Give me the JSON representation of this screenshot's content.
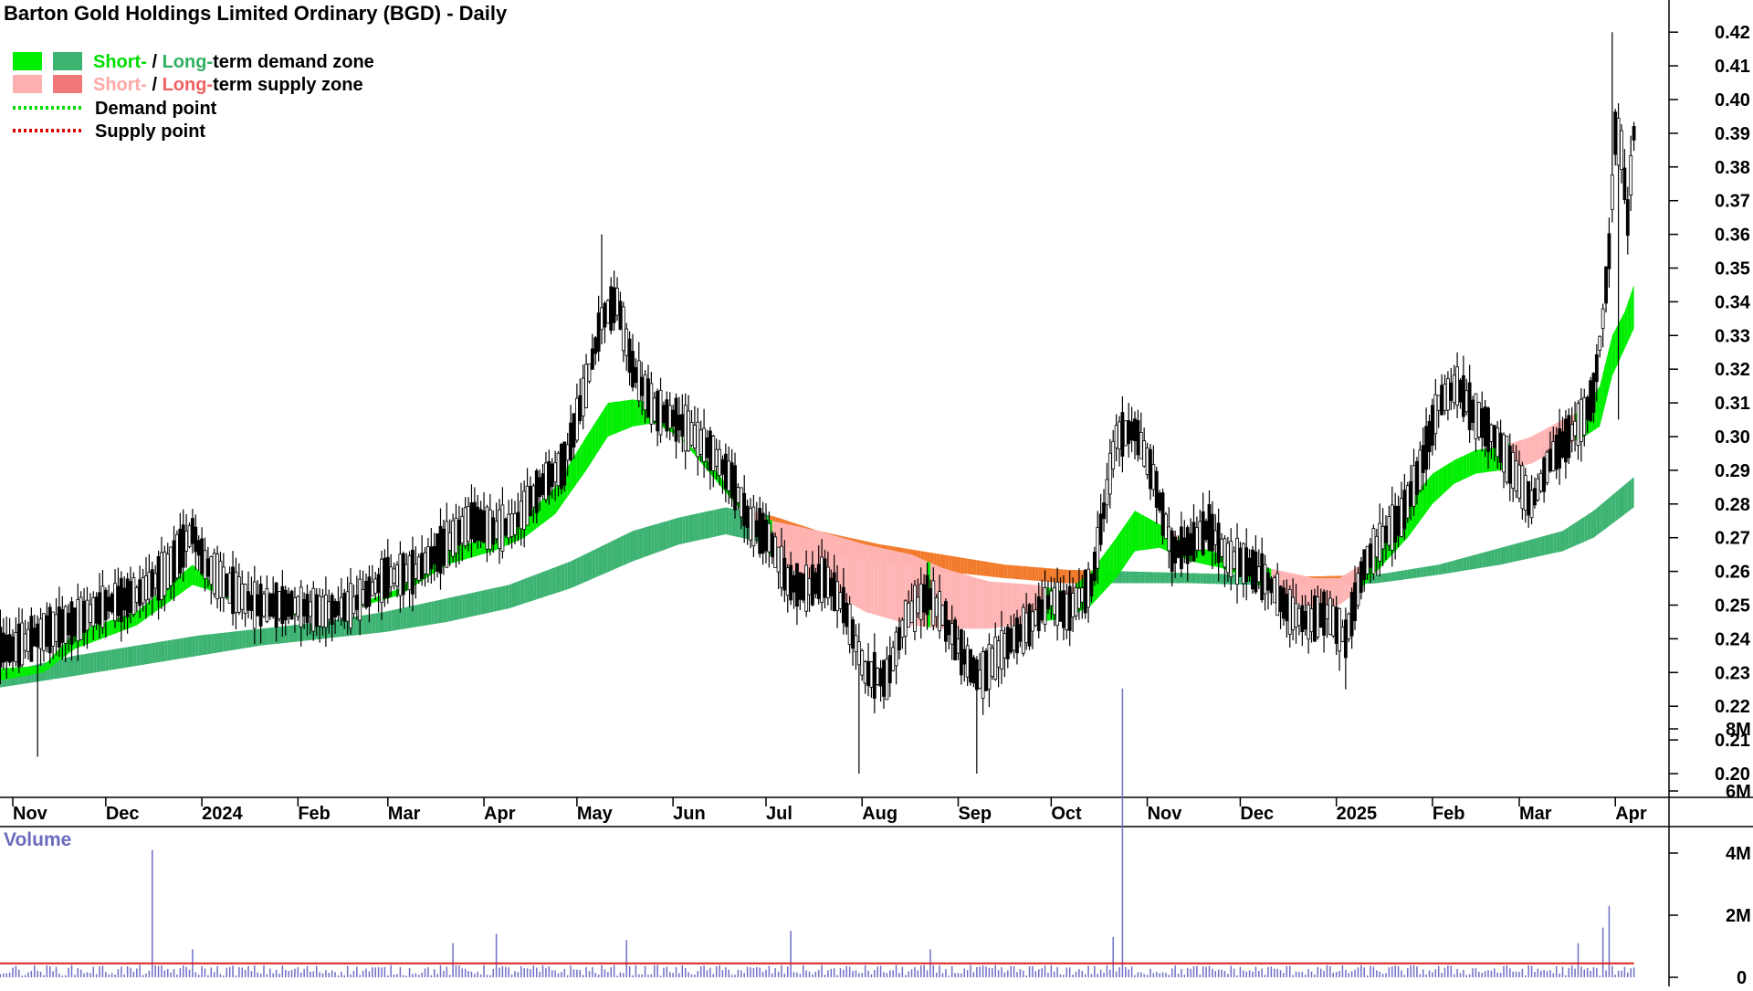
{
  "chart_data": {
    "type": "candlestick",
    "title": "Barton Gold Holdings Limited Ordinary (BGD) - Daily",
    "legend": {
      "placement": "top-left",
      "items": [
        {
          "short": "Short-",
          "sep": " / ",
          "long": "Long-",
          "rest": "term demand zone",
          "short_color": "#00ee00",
          "long_color": "#3cb371",
          "kind": "zone"
        },
        {
          "short": "Short-",
          "sep": " / ",
          "long": "Long-",
          "rest": "term supply zone",
          "short_color": "#ffb0b0",
          "long_color": "#f07878",
          "kind": "zone"
        },
        {
          "label": "Demand point",
          "color": "#00dd00",
          "kind": "dotted"
        },
        {
          "label": "Supply point",
          "color": "#dd0000",
          "kind": "dotted"
        }
      ]
    },
    "price_axis": {
      "ylim": [
        0.195,
        0.425
      ],
      "ticks": [
        "0.20",
        "0.21",
        "0.22",
        "0.23",
        "0.24",
        "0.25",
        "0.26",
        "0.27",
        "0.28",
        "0.29",
        "0.30",
        "0.31",
        "0.32",
        "0.33",
        "0.34",
        "0.35",
        "0.36",
        "0.37",
        "0.38",
        "0.39",
        "0.40",
        "0.41",
        "0.42"
      ]
    },
    "x_axis": {
      "months": [
        {
          "label": "Nov",
          "day": 0
        },
        {
          "label": "Dec",
          "day": 30
        },
        {
          "label": "2024",
          "day": 61
        },
        {
          "label": "Feb",
          "day": 92
        },
        {
          "label": "Mar",
          "day": 121
        },
        {
          "label": "Apr",
          "day": 152
        },
        {
          "label": "May",
          "day": 182
        },
        {
          "label": "Jun",
          "day": 213
        },
        {
          "label": "Jul",
          "day": 243
        },
        {
          "label": "Aug",
          "day": 274
        },
        {
          "label": "Sep",
          "day": 305
        },
        {
          "label": "Oct",
          "day": 335
        },
        {
          "label": "Nov",
          "day": 366
        },
        {
          "label": "Dec",
          "day": 396
        },
        {
          "label": "2025",
          "day": 427
        },
        {
          "label": "Feb",
          "day": 458
        },
        {
          "label": "Mar",
          "day": 486
        },
        {
          "label": "Apr",
          "day": 517
        }
      ],
      "last_day": 523
    },
    "price_path": [
      [
        -8,
        0.238
      ],
      [
        0,
        0.237
      ],
      [
        10,
        0.242
      ],
      [
        20,
        0.245
      ],
      [
        30,
        0.25
      ],
      [
        40,
        0.253
      ],
      [
        50,
        0.26
      ],
      [
        58,
        0.272
      ],
      [
        62,
        0.262
      ],
      [
        70,
        0.255
      ],
      [
        78,
        0.25
      ],
      [
        90,
        0.25
      ],
      [
        100,
        0.248
      ],
      [
        110,
        0.25
      ],
      [
        120,
        0.258
      ],
      [
        130,
        0.26
      ],
      [
        140,
        0.268
      ],
      [
        148,
        0.275
      ],
      [
        155,
        0.272
      ],
      [
        162,
        0.274
      ],
      [
        170,
        0.285
      ],
      [
        178,
        0.292
      ],
      [
        185,
        0.315
      ],
      [
        190,
        0.335
      ],
      [
        195,
        0.34
      ],
      [
        200,
        0.32
      ],
      [
        207,
        0.308
      ],
      [
        214,
        0.305
      ],
      [
        220,
        0.3
      ],
      [
        226,
        0.295
      ],
      [
        232,
        0.287
      ],
      [
        238,
        0.274
      ],
      [
        244,
        0.27
      ],
      [
        250,
        0.257
      ],
      [
        256,
        0.255
      ],
      [
        262,
        0.258
      ],
      [
        268,
        0.25
      ],
      [
        275,
        0.23
      ],
      [
        282,
        0.228
      ],
      [
        288,
        0.246
      ],
      [
        295,
        0.253
      ],
      [
        300,
        0.247
      ],
      [
        306,
        0.236
      ],
      [
        312,
        0.228
      ],
      [
        320,
        0.238
      ],
      [
        328,
        0.244
      ],
      [
        335,
        0.252
      ],
      [
        340,
        0.248
      ],
      [
        348,
        0.256
      ],
      [
        356,
        0.3
      ],
      [
        362,
        0.302
      ],
      [
        368,
        0.288
      ],
      [
        374,
        0.266
      ],
      [
        380,
        0.268
      ],
      [
        386,
        0.273
      ],
      [
        392,
        0.264
      ],
      [
        398,
        0.262
      ],
      [
        405,
        0.257
      ],
      [
        412,
        0.248
      ],
      [
        418,
        0.245
      ],
      [
        424,
        0.248
      ],
      [
        430,
        0.24
      ],
      [
        436,
        0.262
      ],
      [
        442,
        0.27
      ],
      [
        448,
        0.276
      ],
      [
        454,
        0.29
      ],
      [
        460,
        0.31
      ],
      [
        466,
        0.315
      ],
      [
        472,
        0.306
      ],
      [
        478,
        0.3
      ],
      [
        484,
        0.29
      ],
      [
        490,
        0.28
      ],
      [
        496,
        0.293
      ],
      [
        502,
        0.3
      ],
      [
        507,
        0.306
      ],
      [
        510,
        0.313
      ],
      [
        513,
        0.335
      ],
      [
        515,
        0.355
      ],
      [
        517,
        0.39
      ],
      [
        519,
        0.385
      ],
      [
        521,
        0.365
      ],
      [
        523,
        0.39
      ]
    ],
    "spikes": [
      {
        "day": 8,
        "low": 0.205
      },
      {
        "day": 190,
        "high": 0.36
      },
      {
        "day": 273,
        "low": 0.2
      },
      {
        "day": 311,
        "low": 0.2
      },
      {
        "day": 360,
        "high": 0.31
      },
      {
        "day": 430,
        "low": 0.225
      },
      {
        "day": 466,
        "high": 0.325
      },
      {
        "day": 516,
        "high": 0.42
      },
      {
        "day": 518,
        "low": 0.305
      }
    ],
    "short_term_zone": {
      "upper": [
        [
          -8,
          0.231
        ],
        [
          10,
          0.232
        ],
        [
          20,
          0.242
        ],
        [
          40,
          0.248
        ],
        [
          58,
          0.262
        ],
        [
          65,
          0.256
        ],
        [
          75,
          0.25
        ],
        [
          90,
          0.248
        ],
        [
          110,
          0.25
        ],
        [
          125,
          0.255
        ],
        [
          140,
          0.267
        ],
        [
          155,
          0.27
        ],
        [
          165,
          0.276
        ],
        [
          175,
          0.285
        ],
        [
          185,
          0.3
        ],
        [
          192,
          0.31
        ],
        [
          200,
          0.311
        ],
        [
          207,
          0.31
        ],
        [
          215,
          0.3
        ],
        [
          225,
          0.292
        ],
        [
          235,
          0.28
        ],
        [
          245,
          0.275
        ],
        [
          260,
          0.272
        ],
        [
          275,
          0.268
        ],
        [
          290,
          0.265
        ],
        [
          300,
          0.261
        ],
        [
          315,
          0.257
        ],
        [
          330,
          0.256
        ],
        [
          340,
          0.254
        ],
        [
          348,
          0.26
        ],
        [
          356,
          0.27
        ],
        [
          362,
          0.278
        ],
        [
          370,
          0.274
        ],
        [
          380,
          0.268
        ],
        [
          390,
          0.265
        ],
        [
          400,
          0.262
        ],
        [
          410,
          0.26
        ],
        [
          420,
          0.258
        ],
        [
          428,
          0.258
        ],
        [
          435,
          0.262
        ],
        [
          442,
          0.27
        ],
        [
          450,
          0.28
        ],
        [
          458,
          0.289
        ],
        [
          465,
          0.293
        ],
        [
          472,
          0.296
        ],
        [
          480,
          0.297
        ],
        [
          490,
          0.3
        ],
        [
          500,
          0.305
        ],
        [
          507,
          0.308
        ],
        [
          512,
          0.315
        ],
        [
          516,
          0.33
        ],
        [
          520,
          0.337
        ],
        [
          523,
          0.345
        ]
      ],
      "lower": [
        [
          -8,
          0.227
        ],
        [
          10,
          0.23
        ],
        [
          20,
          0.237
        ],
        [
          40,
          0.244
        ],
        [
          58,
          0.256
        ],
        [
          65,
          0.254
        ],
        [
          75,
          0.249
        ],
        [
          90,
          0.247
        ],
        [
          110,
          0.249
        ],
        [
          125,
          0.253
        ],
        [
          140,
          0.262
        ],
        [
          155,
          0.266
        ],
        [
          165,
          0.27
        ],
        [
          175,
          0.277
        ],
        [
          185,
          0.29
        ],
        [
          192,
          0.3
        ],
        [
          200,
          0.303
        ],
        [
          207,
          0.304
        ],
        [
          215,
          0.3
        ],
        [
          225,
          0.289
        ],
        [
          235,
          0.278
        ],
        [
          245,
          0.264
        ],
        [
          260,
          0.256
        ],
        [
          275,
          0.248
        ],
        [
          290,
          0.244
        ],
        [
          300,
          0.243
        ],
        [
          315,
          0.243
        ],
        [
          330,
          0.245
        ],
        [
          340,
          0.246
        ],
        [
          348,
          0.25
        ],
        [
          356,
          0.258
        ],
        [
          362,
          0.266
        ],
        [
          370,
          0.267
        ],
        [
          380,
          0.263
        ],
        [
          390,
          0.261
        ],
        [
          400,
          0.257
        ],
        [
          410,
          0.252
        ],
        [
          420,
          0.249
        ],
        [
          428,
          0.25
        ],
        [
          435,
          0.255
        ],
        [
          442,
          0.262
        ],
        [
          450,
          0.27
        ],
        [
          458,
          0.28
        ],
        [
          465,
          0.286
        ],
        [
          472,
          0.289
        ],
        [
          480,
          0.29
        ],
        [
          490,
          0.292
        ],
        [
          500,
          0.297
        ],
        [
          507,
          0.3
        ],
        [
          512,
          0.303
        ],
        [
          516,
          0.318
        ],
        [
          520,
          0.326
        ],
        [
          523,
          0.332
        ]
      ]
    },
    "long_term_zone": {
      "upper": [
        [
          -8,
          0.229
        ],
        [
          20,
          0.235
        ],
        [
          40,
          0.238
        ],
        [
          60,
          0.241
        ],
        [
          80,
          0.243
        ],
        [
          100,
          0.245
        ],
        [
          120,
          0.248
        ],
        [
          140,
          0.252
        ],
        [
          160,
          0.256
        ],
        [
          180,
          0.263
        ],
        [
          200,
          0.272
        ],
        [
          215,
          0.276
        ],
        [
          230,
          0.279
        ],
        [
          245,
          0.2765
        ],
        [
          260,
          0.272
        ],
        [
          280,
          0.268
        ],
        [
          300,
          0.265
        ],
        [
          320,
          0.262
        ],
        [
          340,
          0.2605
        ],
        [
          360,
          0.26
        ],
        [
          380,
          0.2595
        ],
        [
          400,
          0.259
        ],
        [
          420,
          0.2585
        ],
        [
          440,
          0.259
        ],
        [
          460,
          0.262
        ],
        [
          480,
          0.267
        ],
        [
          500,
          0.272
        ],
        [
          510,
          0.278
        ],
        [
          523,
          0.288
        ]
      ],
      "lower": [
        [
          -8,
          0.225
        ],
        [
          20,
          0.229
        ],
        [
          40,
          0.232
        ],
        [
          60,
          0.235
        ],
        [
          80,
          0.238
        ],
        [
          100,
          0.24
        ],
        [
          120,
          0.242
        ],
        [
          140,
          0.245
        ],
        [
          160,
          0.249
        ],
        [
          180,
          0.255
        ],
        [
          200,
          0.263
        ],
        [
          215,
          0.268
        ],
        [
          230,
          0.271
        ],
        [
          245,
          0.268
        ],
        [
          260,
          0.265
        ],
        [
          280,
          0.263
        ],
        [
          300,
          0.26
        ],
        [
          320,
          0.258
        ],
        [
          340,
          0.2565
        ],
        [
          360,
          0.2565
        ],
        [
          380,
          0.2565
        ],
        [
          400,
          0.256
        ],
        [
          420,
          0.2555
        ],
        [
          440,
          0.2565
        ],
        [
          460,
          0.259
        ],
        [
          480,
          0.262
        ],
        [
          500,
          0.266
        ],
        [
          510,
          0.27
        ],
        [
          523,
          0.279
        ]
      ]
    },
    "volume_axis": {
      "ylim": [
        0,
        9.5
      ],
      "ticks": [
        "0",
        "2M",
        "4M",
        "6M",
        "8M"
      ],
      "label": "Volume"
    },
    "volume_spikes": [
      {
        "day": 45,
        "value": 4.1
      },
      {
        "day": 58,
        "value": 0.9
      },
      {
        "day": 142,
        "value": 1.1
      },
      {
        "day": 156,
        "value": 1.4
      },
      {
        "day": 198,
        "value": 1.2
      },
      {
        "day": 251,
        "value": 1.5
      },
      {
        "day": 296,
        "value": 0.9
      },
      {
        "day": 355,
        "value": 1.3
      },
      {
        "day": 358,
        "value": 9.3
      },
      {
        "day": 505,
        "value": 1.1
      },
      {
        "day": 515,
        "value": 2.3
      },
      {
        "day": 513,
        "value": 1.6
      }
    ],
    "volume_avg": 0.45
  }
}
